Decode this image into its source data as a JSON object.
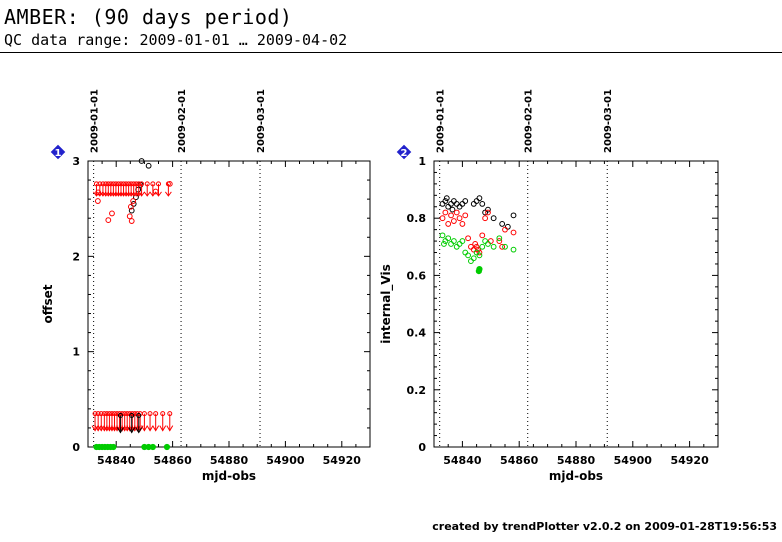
{
  "header": {
    "title": "AMBER: (90 days period)",
    "subtitle": "QC data range: 2009-01-01 … 2009-04-02"
  },
  "footer": {
    "text": "created by trendPlotter v2.0.2 on 2009-01-28T19:56:53"
  },
  "colors": {
    "black": "#000000",
    "red": "#ff0000",
    "green": "#00cc00",
    "badge": "#2222cc"
  },
  "chart_data": [
    {
      "type": "scatter",
      "badge": "1",
      "xlabel": "mjd-obs",
      "ylabel": "offset",
      "xlim": [
        54830,
        54930
      ],
      "ylim": [
        0,
        3
      ],
      "xticks": [
        54840,
        54860,
        54880,
        54900,
        54920
      ],
      "yticks": [
        0,
        1,
        2,
        3
      ],
      "date_markers": [
        {
          "x": 54832,
          "label": "2009-01-01"
        },
        {
          "x": 54863,
          "label": "2009-02-01"
        },
        {
          "x": 54891,
          "label": "2009-03-01"
        }
      ],
      "series": [
        {
          "color": "black",
          "style": "open",
          "points": [
            [
              54845.5,
              2.48
            ],
            [
              54846.2,
              2.55
            ],
            [
              54847.0,
              2.62
            ],
            [
              54847.8,
              2.7
            ],
            [
              54849.0,
              3.0
            ],
            [
              54851.5,
              2.95
            ],
            [
              54848.6,
              2.75
            ]
          ]
        },
        {
          "color": "red",
          "style": "open",
          "points": [
            [
              54833.5,
              2.58
            ],
            [
              54833.6,
              2.67
            ],
            [
              54837.2,
              2.38
            ],
            [
              54838.5,
              2.45
            ],
            [
              54844.8,
              2.42
            ],
            [
              54845.2,
              2.52
            ],
            [
              54846.0,
              2.58
            ],
            [
              54845.5,
              2.37
            ],
            [
              54854.0,
              2.68
            ],
            [
              54859.0,
              2.76
            ]
          ]
        },
        {
          "color": "red",
          "style": "upper_arrow",
          "points": [
            [
              54833.0,
              2.76
            ],
            [
              54834.2,
              2.76
            ],
            [
              54835.3,
              2.76
            ],
            [
              54836.3,
              2.76
            ],
            [
              54837.2,
              2.76
            ],
            [
              54838.1,
              2.76
            ],
            [
              54839.0,
              2.76
            ],
            [
              54839.9,
              2.76
            ],
            [
              54840.8,
              2.76
            ],
            [
              54841.7,
              2.76
            ],
            [
              54842.6,
              2.76
            ],
            [
              54843.5,
              2.76
            ],
            [
              54844.4,
              2.76
            ],
            [
              54845.3,
              2.76
            ],
            [
              54846.2,
              2.76
            ],
            [
              54847.1,
              2.76
            ],
            [
              54848.0,
              2.76
            ],
            [
              54849.0,
              2.76
            ],
            [
              54851.0,
              2.76
            ],
            [
              54853.0,
              2.76
            ],
            [
              54855.0,
              2.76
            ],
            [
              54858.5,
              2.76
            ]
          ]
        },
        {
          "color": "red",
          "style": "lower_arrow",
          "points": [
            [
              54832.5,
              0.35
            ],
            [
              54833.6,
              0.35
            ],
            [
              54834.7,
              0.35
            ],
            [
              54835.8,
              0.35
            ],
            [
              54836.7,
              0.35
            ],
            [
              54837.6,
              0.35
            ],
            [
              54838.5,
              0.35
            ],
            [
              54839.4,
              0.35
            ],
            [
              54840.3,
              0.35
            ],
            [
              54841.2,
              0.35
            ],
            [
              54842.1,
              0.35
            ],
            [
              54843.0,
              0.35
            ],
            [
              54843.9,
              0.35
            ],
            [
              54844.8,
              0.35
            ],
            [
              54845.7,
              0.35
            ],
            [
              54846.6,
              0.35
            ],
            [
              54847.5,
              0.35
            ],
            [
              54848.5,
              0.35
            ],
            [
              54850.0,
              0.35
            ],
            [
              54852.0,
              0.35
            ],
            [
              54854.0,
              0.35
            ],
            [
              54856.5,
              0.35
            ],
            [
              54859.0,
              0.35
            ]
          ]
        },
        {
          "color": "black",
          "style": "lower_arrow",
          "points": [
            [
              54841.5,
              0.33
            ],
            [
              54845.5,
              0.33
            ],
            [
              54848.0,
              0.33
            ]
          ]
        },
        {
          "color": "green",
          "style": "filled",
          "points": [
            [
              54833,
              0.0
            ],
            [
              54834,
              0.0
            ],
            [
              54835,
              0.0
            ],
            [
              54836,
              0.0
            ],
            [
              54837,
              0.0
            ],
            [
              54838,
              0.0
            ],
            [
              54839,
              0.0
            ],
            [
              54850,
              0.0
            ],
            [
              54851.5,
              0.0
            ],
            [
              54853,
              0.0
            ],
            [
              54858,
              0.0
            ]
          ]
        }
      ]
    },
    {
      "type": "scatter",
      "badge": "2",
      "xlabel": "mjd-obs",
      "ylabel": "internal_Vis",
      "xlim": [
        54830,
        54930
      ],
      "ylim": [
        0,
        1
      ],
      "xticks": [
        54840,
        54860,
        54880,
        54900,
        54920
      ],
      "yticks": [
        0,
        0.2,
        0.4,
        0.6,
        0.8,
        1
      ],
      "date_markers": [
        {
          "x": 54832,
          "label": "2009-01-01"
        },
        {
          "x": 54863,
          "label": "2009-02-01"
        },
        {
          "x": 54891,
          "label": "2009-03-01"
        }
      ],
      "series": [
        {
          "color": "black",
          "style": "open",
          "points": [
            [
              54833,
              0.85
            ],
            [
              54834,
              0.86
            ],
            [
              54835,
              0.84
            ],
            [
              54836,
              0.85
            ],
            [
              54837,
              0.86
            ],
            [
              54838,
              0.85
            ],
            [
              54839,
              0.84
            ],
            [
              54840,
              0.85
            ],
            [
              54841,
              0.86
            ],
            [
              54844,
              0.85
            ],
            [
              54845,
              0.86
            ],
            [
              54846,
              0.87
            ],
            [
              54847,
              0.85
            ],
            [
              54848,
              0.82
            ],
            [
              54849,
              0.83
            ],
            [
              54851,
              0.8
            ],
            [
              54854,
              0.78
            ],
            [
              54856,
              0.77
            ],
            [
              54858,
              0.81
            ],
            [
              54834.5,
              0.87
            ],
            [
              54836.5,
              0.83
            ]
          ]
        },
        {
          "color": "red",
          "style": "open",
          "points": [
            [
              54833,
              0.8
            ],
            [
              54834,
              0.82
            ],
            [
              54835,
              0.78
            ],
            [
              54836,
              0.81
            ],
            [
              54837,
              0.79
            ],
            [
              54838,
              0.82
            ],
            [
              54839,
              0.8
            ],
            [
              54840,
              0.78
            ],
            [
              54841,
              0.81
            ],
            [
              54842,
              0.73
            ],
            [
              54843,
              0.7
            ],
            [
              54844,
              0.69
            ],
            [
              54845,
              0.7
            ],
            [
              54846,
              0.68
            ],
            [
              54847,
              0.74
            ],
            [
              54848,
              0.8
            ],
            [
              54849,
              0.82
            ],
            [
              54850,
              0.72
            ],
            [
              54853,
              0.72
            ],
            [
              54854,
              0.7
            ],
            [
              54855,
              0.76
            ],
            [
              54858,
              0.75
            ],
            [
              54844.5,
              0.71
            ],
            [
              54845.5,
              0.69
            ]
          ]
        },
        {
          "color": "green",
          "style": "open",
          "points": [
            [
              54833,
              0.74
            ],
            [
              54834,
              0.72
            ],
            [
              54835,
              0.73
            ],
            [
              54836,
              0.71
            ],
            [
              54837,
              0.72
            ],
            [
              54838,
              0.7
            ],
            [
              54839,
              0.71
            ],
            [
              54840,
              0.72
            ],
            [
              54841,
              0.68
            ],
            [
              54842,
              0.67
            ],
            [
              54843,
              0.65
            ],
            [
              54844,
              0.66
            ],
            [
              54845,
              0.68
            ],
            [
              54846,
              0.67
            ],
            [
              54847,
              0.7
            ],
            [
              54848,
              0.72
            ],
            [
              54849,
              0.71
            ],
            [
              54851,
              0.7
            ],
            [
              54853,
              0.73
            ],
            [
              54855,
              0.7
            ],
            [
              54858,
              0.69
            ],
            [
              54833.5,
              0.71
            ]
          ]
        },
        {
          "color": "green",
          "style": "filled",
          "points": [
            [
              54845.8,
              0.615
            ],
            [
              54846.0,
              0.622
            ]
          ]
        }
      ]
    }
  ]
}
